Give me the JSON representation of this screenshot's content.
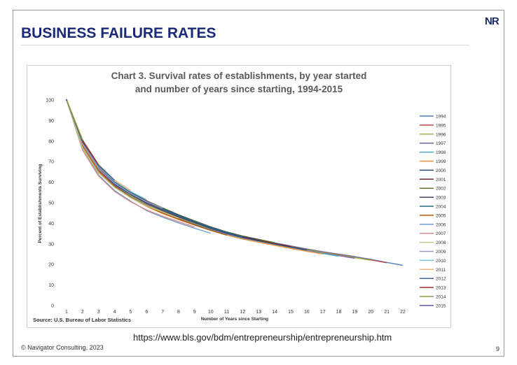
{
  "slide": {
    "logo": "NR",
    "title": "BUSINESS FAILURE RATES",
    "url": "https://www.bls.gov/bdm/entrepreneurship/entrepreneurship.htm",
    "copyright": "© Navigator Consulting, 2023",
    "page_number": "9"
  },
  "chart_data": {
    "type": "line",
    "title_line1": "Chart 3. Survival rates of establishments, by year started",
    "title_line2": "and number of years since starting, 1994-2015",
    "xlabel": "Number of Years since Starting",
    "ylabel": "Percent of Establishments Surviving",
    "source": "Source: U.S. Bureau of Labor Statistics",
    "xlim": [
      1,
      22
    ],
    "ylim": [
      0,
      100
    ],
    "x_ticks": [
      1,
      2,
      3,
      4,
      5,
      6,
      7,
      8,
      9,
      10,
      11,
      12,
      13,
      14,
      15,
      16,
      17,
      18,
      19,
      20,
      21,
      22
    ],
    "y_ticks": [
      0,
      10,
      20,
      30,
      40,
      50,
      60,
      70,
      80,
      90,
      100
    ],
    "grid": false,
    "legend_position": "right",
    "series": [
      {
        "name": "1994",
        "color": "#4a7ebb",
        "values": [
          100,
          79.5,
          67.5,
          60,
          54.5,
          50,
          46.5,
          43.5,
          40.5,
          38,
          35.5,
          33.5,
          32,
          30.5,
          29,
          27.5,
          26.2,
          25,
          23.8,
          22.5,
          21,
          19.6
        ]
      },
      {
        "name": "1995",
        "color": "#be4b48",
        "values": [
          100,
          79,
          67,
          59.5,
          54,
          49.5,
          46,
          43,
          40,
          37.5,
          35.2,
          33.2,
          31.8,
          30.2,
          28.8,
          27.2,
          26,
          24.8,
          23.5,
          22.2,
          20.8
        ]
      },
      {
        "name": "1996",
        "color": "#98b954",
        "values": [
          100,
          78.5,
          66.5,
          59,
          53.5,
          49,
          45.5,
          42.5,
          39.8,
          37.3,
          35,
          33,
          31.5,
          30,
          28.5,
          27,
          25.8,
          24.5,
          23.3,
          22
        ]
      },
      {
        "name": "1997",
        "color": "#7d60a0",
        "values": [
          100,
          78,
          66,
          58.5,
          53,
          48.8,
          45.2,
          42.2,
          39.5,
          37,
          34.8,
          32.8,
          31.2,
          29.8,
          28.3,
          26.8,
          25.5,
          24.3,
          23
        ]
      },
      {
        "name": "1998",
        "color": "#46aac5",
        "values": [
          100,
          77.5,
          65.5,
          58,
          52.8,
          48.5,
          45,
          42,
          39.3,
          36.8,
          34.5,
          32.5,
          31,
          29.5,
          28,
          26.6,
          25.3,
          24
        ]
      },
      {
        "name": "1999",
        "color": "#f69240",
        "values": [
          100,
          77,
          65,
          57.5,
          52.5,
          48.2,
          44.8,
          41.8,
          39.2,
          36.6,
          34.3,
          32.3,
          30.8,
          29.3,
          27.8,
          26.4,
          25.1
        ]
      },
      {
        "name": "2000",
        "color": "#2c4d75",
        "values": [
          100,
          78.5,
          66.5,
          59,
          54,
          49.8,
          46.3,
          43.2,
          40.3,
          37.6,
          35.2,
          33.2,
          31.6,
          30,
          28.5,
          27
        ]
      },
      {
        "name": "2001",
        "color": "#772c2a",
        "values": [
          100,
          80,
          68,
          60.5,
          55,
          50.5,
          47,
          43.8,
          40.8,
          38,
          35.5,
          33.4,
          31.8,
          30.2,
          28.7
        ]
      },
      {
        "name": "2002",
        "color": "#5f7530",
        "values": [
          100,
          80.5,
          68.5,
          61,
          55.5,
          51,
          47.5,
          44.2,
          41.2,
          38.3,
          35.8,
          33.8,
          32.2,
          30.6
        ]
      },
      {
        "name": "2003",
        "color": "#4d3b62",
        "values": [
          100,
          80,
          68,
          60.5,
          55.2,
          50.8,
          47.2,
          44,
          41,
          38.2,
          35.7,
          33.6,
          32
        ]
      },
      {
        "name": "2004",
        "color": "#276a7c",
        "values": [
          100,
          79.5,
          67.5,
          60.2,
          55,
          50.5,
          47,
          43.8,
          40.8,
          38,
          35.5,
          33.4
        ]
      },
      {
        "name": "2005",
        "color": "#b65708",
        "values": [
          100,
          78,
          65.5,
          58,
          52.8,
          48.5,
          45,
          42,
          39.2,
          36.6,
          34.3
        ]
      },
      {
        "name": "2006",
        "color": "#729aca",
        "values": [
          100,
          76.5,
          63.5,
          56,
          50.8,
          46.2,
          43,
          40.2,
          37.6,
          35.2
        ]
      },
      {
        "name": "2007",
        "color": "#d48f8d",
        "values": [
          100,
          75.5,
          63,
          55.5,
          50.5,
          46.5,
          43.5,
          40.8,
          38.2
        ]
      },
      {
        "name": "2008",
        "color": "#b2c98b",
        "values": [
          100,
          76.5,
          64.5,
          57.5,
          52.5,
          48.5,
          45.5,
          42.5
        ]
      },
      {
        "name": "2009",
        "color": "#a796bd",
        "values": [
          100,
          78.5,
          66.5,
          59.5,
          54.5,
          50.5,
          47.3
        ]
      },
      {
        "name": "2010",
        "color": "#72c1d5",
        "values": [
          100,
          79,
          67.5,
          60.5,
          55.5,
          51.5
        ]
      },
      {
        "name": "2011",
        "color": "#f8b178",
        "values": [
          100,
          79.5,
          68,
          61,
          56
        ]
      },
      {
        "name": "2012",
        "color": "#3d64a0",
        "values": [
          100,
          79.5,
          68,
          61
        ]
      },
      {
        "name": "2013",
        "color": "#a5302c",
        "values": [
          100,
          80,
          68.5
        ]
      },
      {
        "name": "2014",
        "color": "#7aa33e",
        "values": [
          100,
          80.5
        ]
      },
      {
        "name": "2015",
        "color": "#6a51a3",
        "values": [
          100
        ]
      }
    ]
  }
}
